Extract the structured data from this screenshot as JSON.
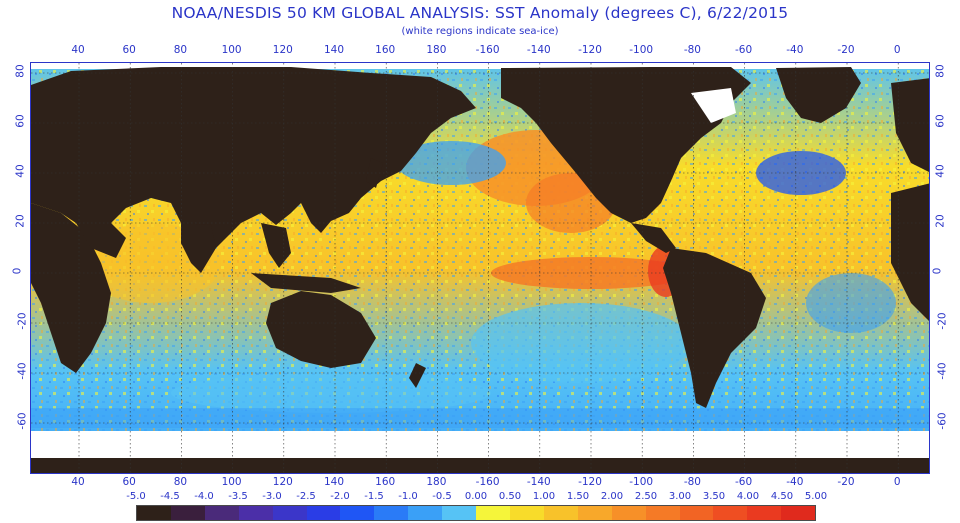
{
  "header": {
    "title": "NOAA/NESDIS 50 KM GLOBAL ANALYSIS: SST Anomaly (degrees C), 6/22/2015",
    "subtitle": "(white regions indicate sea-ice)"
  },
  "map": {
    "lon_ticks": [
      "40",
      "60",
      "80",
      "100",
      "120",
      "140",
      "160",
      "180",
      "-160",
      "-140",
      "-120",
      "-100",
      "-80",
      "-60",
      "-40",
      "-20",
      "0"
    ],
    "lat_ticks": [
      "80",
      "60",
      "40",
      "20",
      "0",
      "-20",
      "-40",
      "-60"
    ],
    "lat_ticks_right": [
      "80",
      "60",
      "40",
      "20",
      "0",
      "-20",
      "-40",
      "-60"
    ],
    "colors": {
      "land": "#2e2119",
      "ice": "#ffffff",
      "grid": "#333333",
      "axis_text": "#2b35c8"
    }
  },
  "colorbar": {
    "labels": [
      "-5.0",
      "-4.5",
      "-4.0",
      "-3.5",
      "-3.0",
      "-2.5",
      "-2.0",
      "-1.5",
      "-1.0",
      "-0.5",
      "0.00",
      "0.50",
      "1.00",
      "1.50",
      "2.00",
      "2.50",
      "3.00",
      "3.50",
      "4.00",
      "4.50",
      "5.00"
    ],
    "colors": [
      "#2e2119",
      "#3a1f3d",
      "#4a2a7a",
      "#4b2fa8",
      "#3b36c9",
      "#2a3de6",
      "#1f56f5",
      "#2a7bf7",
      "#3aa0f7",
      "#56c3f5",
      "#f5f53a",
      "#f8dc2a",
      "#f8c22a",
      "#f8a82a",
      "#f79028",
      "#f57a26",
      "#f26424",
      "#ef4e22",
      "#ea3a20",
      "#e02a1d"
    ]
  }
}
